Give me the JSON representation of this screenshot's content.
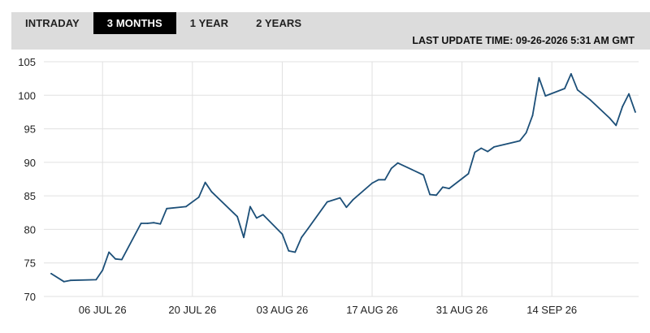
{
  "tabs": [
    {
      "label": "INTRADAY",
      "active": false
    },
    {
      "label": "3 MONTHS",
      "active": true
    },
    {
      "label": "1 YEAR",
      "active": false
    },
    {
      "label": "2 YEARS",
      "active": false
    }
  ],
  "update_text": "LAST UPDATE TIME: 09-26-2026 5:31 AM GMT",
  "colors": {
    "line": "#1c4f78",
    "grid": "#e0e0e0",
    "axis_text": "#222222",
    "active_tab": "#000000",
    "bar": "#dcdcdc"
  },
  "chart_data": {
    "type": "line",
    "title": "",
    "xlabel": "",
    "ylabel": "",
    "ylim": [
      70,
      105
    ],
    "yticks": [
      70,
      75,
      80,
      85,
      90,
      95,
      100,
      105
    ],
    "xlim": [
      "2026-06-28",
      "2026-09-26"
    ],
    "xticks": [
      {
        "date": "2026-07-06",
        "label": "06 JUL 26"
      },
      {
        "date": "2026-07-20",
        "label": "20 JUL 26"
      },
      {
        "date": "2026-08-03",
        "label": "03 AUG 26"
      },
      {
        "date": "2026-08-17",
        "label": "17 AUG 26"
      },
      {
        "date": "2026-08-31",
        "label": "31 AUG 26"
      },
      {
        "date": "2026-09-14",
        "label": "14 SEP 26"
      }
    ],
    "grid": true,
    "series": [
      {
        "points": [
          [
            "2026-06-28",
            73.4
          ],
          [
            "2026-06-30",
            72.2
          ],
          [
            "2026-07-01",
            72.4
          ],
          [
            "2026-07-05",
            72.5
          ],
          [
            "2026-07-06",
            73.9
          ],
          [
            "2026-07-07",
            76.6
          ],
          [
            "2026-07-08",
            75.6
          ],
          [
            "2026-07-09",
            75.5
          ],
          [
            "2026-07-12",
            80.9
          ],
          [
            "2026-07-13",
            80.9
          ],
          [
            "2026-07-14",
            81.0
          ],
          [
            "2026-07-15",
            80.8
          ],
          [
            "2026-07-16",
            83.1
          ],
          [
            "2026-07-19",
            83.4
          ],
          [
            "2026-07-21",
            84.8
          ],
          [
            "2026-07-22",
            87.0
          ],
          [
            "2026-07-23",
            85.6
          ],
          [
            "2026-07-27",
            81.9
          ],
          [
            "2026-07-28",
            78.8
          ],
          [
            "2026-07-29",
            83.4
          ],
          [
            "2026-07-30",
            81.7
          ],
          [
            "2026-07-31",
            82.2
          ],
          [
            "2026-08-03",
            79.3
          ],
          [
            "2026-08-04",
            76.8
          ],
          [
            "2026-08-05",
            76.6
          ],
          [
            "2026-08-06",
            78.8
          ],
          [
            "2026-08-07",
            80.1
          ],
          [
            "2026-08-10",
            84.1
          ],
          [
            "2026-08-12",
            84.7
          ],
          [
            "2026-08-13",
            83.3
          ],
          [
            "2026-08-14",
            84.4
          ],
          [
            "2026-08-17",
            86.9
          ],
          [
            "2026-08-18",
            87.4
          ],
          [
            "2026-08-19",
            87.4
          ],
          [
            "2026-08-20",
            89.1
          ],
          [
            "2026-08-21",
            89.9
          ],
          [
            "2026-08-25",
            88.1
          ],
          [
            "2026-08-26",
            85.2
          ],
          [
            "2026-08-27",
            85.1
          ],
          [
            "2026-08-28",
            86.3
          ],
          [
            "2026-08-29",
            86.1
          ],
          [
            "2026-09-01",
            88.3
          ],
          [
            "2026-09-02",
            91.5
          ],
          [
            "2026-09-03",
            92.1
          ],
          [
            "2026-09-04",
            91.6
          ],
          [
            "2026-09-05",
            92.3
          ],
          [
            "2026-09-09",
            93.2
          ],
          [
            "2026-09-10",
            94.4
          ],
          [
            "2026-09-11",
            97.0
          ],
          [
            "2026-09-12",
            102.6
          ],
          [
            "2026-09-13",
            99.9
          ],
          [
            "2026-09-16",
            101.0
          ],
          [
            "2026-09-17",
            103.2
          ],
          [
            "2026-09-18",
            100.8
          ],
          [
            "2026-09-20",
            99.3
          ],
          [
            "2026-09-23",
            96.6
          ],
          [
            "2026-09-24",
            95.5
          ],
          [
            "2026-09-25",
            98.3
          ],
          [
            "2026-09-26",
            100.2
          ],
          [
            "2026-09-27",
            97.5
          ]
        ]
      }
    ]
  }
}
